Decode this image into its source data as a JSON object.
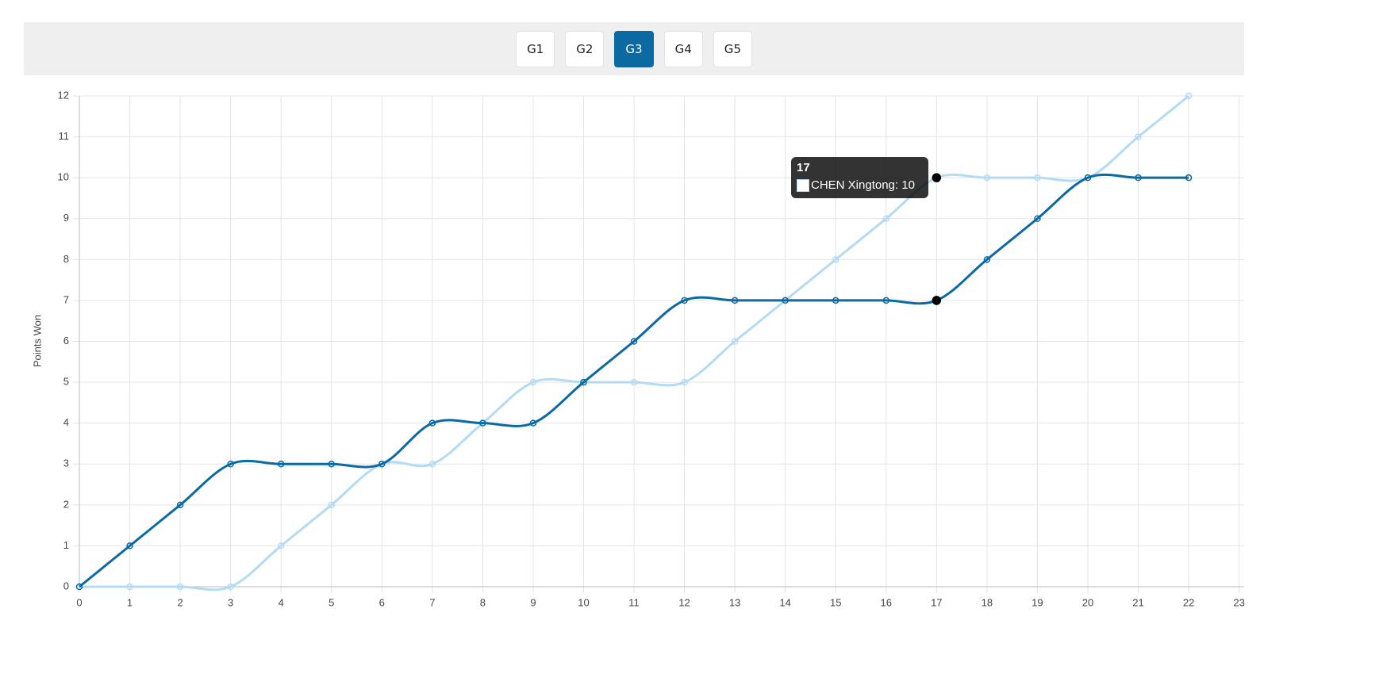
{
  "tabs": {
    "items": [
      "G1",
      "G2",
      "G3",
      "G4",
      "G5"
    ],
    "active": 2
  },
  "chart_data": {
    "type": "line",
    "y_label": "Points Won",
    "x": [
      0,
      1,
      2,
      3,
      4,
      5,
      6,
      7,
      8,
      9,
      10,
      11,
      12,
      13,
      14,
      15,
      16,
      17,
      18,
      19,
      20,
      21,
      22
    ],
    "xlim": [
      0,
      23
    ],
    "xticks": [
      0,
      1,
      2,
      3,
      4,
      5,
      6,
      7,
      8,
      9,
      10,
      11,
      12,
      13,
      14,
      15,
      16,
      17,
      18,
      19,
      20,
      21,
      22,
      23
    ],
    "ylim": [
      0,
      12
    ],
    "yticks": [
      0,
      1,
      2,
      3,
      4,
      5,
      6,
      7,
      8,
      9,
      10,
      11,
      12
    ],
    "grid": true,
    "series": [
      {
        "color": "#0b6aa2",
        "values": [
          0,
          1,
          2,
          3,
          3,
          3,
          3,
          4,
          4,
          4,
          5,
          6,
          7,
          7,
          7,
          7,
          7,
          7,
          8,
          9,
          10,
          10,
          10
        ]
      },
      {
        "name": "CHEN Xingtong",
        "color": "#b3dbf5",
        "values": [
          0,
          0,
          0,
          0,
          1,
          2,
          3,
          3,
          4,
          5,
          5,
          5,
          5,
          6,
          7,
          8,
          9,
          10,
          10,
          10,
          10,
          11,
          12
        ]
      }
    ],
    "active_index": 17,
    "tooltip": {
      "title": "17",
      "label": "CHEN Xingtong: 10"
    }
  }
}
